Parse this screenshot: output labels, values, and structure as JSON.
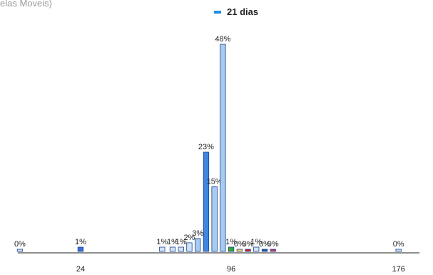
{
  "header": {
    "top_title": "elas Moveis)"
  },
  "chart_data": {
    "type": "bar",
    "series": [
      {
        "name": "21 dias",
        "color": "#1e8fe6"
      }
    ],
    "unit": "%",
    "x": [
      -5,
      24,
      63,
      68,
      72,
      76,
      80,
      84,
      88,
      92,
      96,
      100,
      104,
      108,
      112,
      116,
      176
    ],
    "values": [
      0,
      1,
      1,
      1,
      1,
      2,
      3,
      23,
      15,
      48,
      1,
      0,
      0,
      1,
      0,
      0,
      0
    ],
    "data_labels": [
      "0%",
      "1%",
      "1%",
      "1%",
      "1%",
      "2%",
      "3%",
      "23%",
      "15%",
      "48%",
      "1%",
      "0%",
      "0%",
      "1%",
      "0%",
      "0%",
      "0%"
    ],
    "bar_colors": [
      "#cfe3f7",
      "#3a6fd8",
      "#cfe3f7",
      "#cfe3f7",
      "#cfe3f7",
      "#cfe3f7",
      "#a8cbf0",
      "#3f86e0",
      "#a8cbf0",
      "#a8cbf0",
      "#33aa33",
      "#ffd54a",
      "#cc2222",
      "#cfe3f7",
      "#2255aa",
      "#cc3366",
      "#cfe3f7"
    ],
    "x_ticks": [
      24,
      96,
      176
    ],
    "ylim": [
      0,
      48
    ],
    "grid": false,
    "legend_position": "top"
  }
}
